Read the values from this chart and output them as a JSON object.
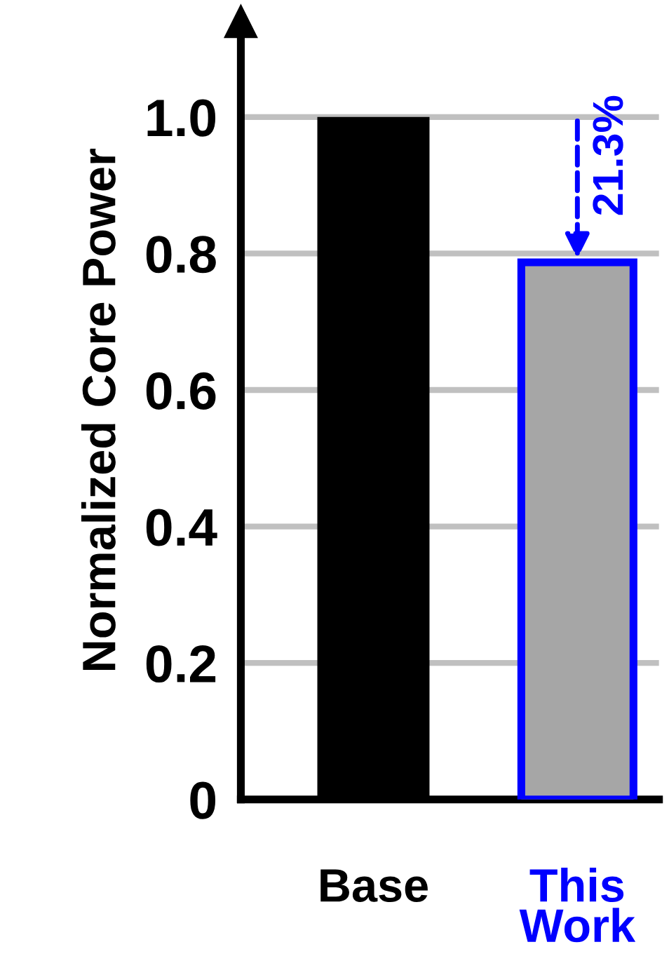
{
  "chart_data": {
    "type": "bar",
    "ylabel": "Normalized Core Power",
    "categories": [
      "Base",
      "This\nWork"
    ],
    "values": [
      1.0,
      0.787
    ],
    "colors": [
      "#000000",
      "#a6a6a6"
    ],
    "ylim": [
      0,
      1.14
    ],
    "yticks": [
      {
        "value": 0,
        "label": "0"
      },
      {
        "value": 0.2,
        "label": "0.2"
      },
      {
        "value": 0.4,
        "label": "0.4"
      },
      {
        "value": 0.6,
        "label": "0.6"
      },
      {
        "value": 0.8,
        "label": "0.8"
      },
      {
        "value": 1.0,
        "label": "1.0"
      }
    ],
    "grid": "y",
    "annotations": [
      {
        "text": "21.3%",
        "x": "This\nWork",
        "y": 0.787
      }
    ]
  }
}
